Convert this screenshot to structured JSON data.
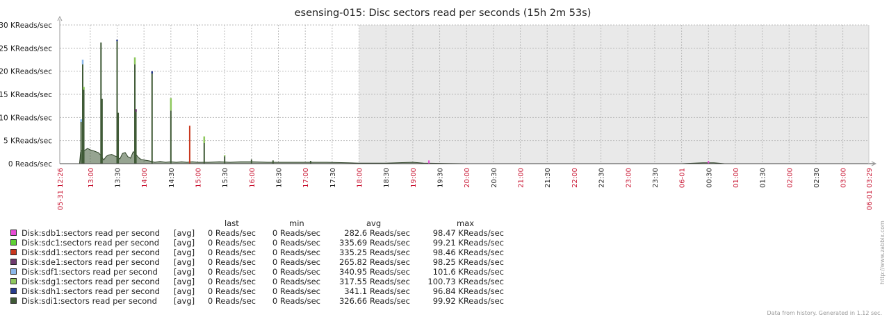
{
  "chart_data": {
    "type": "area",
    "title": "esensing-015: Disc sectors read per seconds (15h 2m 53s)",
    "xlabel": "",
    "ylabel": "",
    "ylim": [
      0,
      30
    ],
    "y_unit": "KReads/sec",
    "ytick_labels": [
      "0 Reads/sec",
      "5 KReads/sec",
      "10 KReads/sec",
      "15 KReads/sec",
      "20 KReads/sec",
      "25 KReads/sec",
      "30 KReads/sec"
    ],
    "x_range_hours": [
      12.4333,
      27.4833
    ],
    "x_start_label": "05-31 12:26",
    "x_end_label": "06-01 03:29",
    "x_ticks": [
      {
        "label": "13:00",
        "h": 13.0,
        "major": true
      },
      {
        "label": "13:30",
        "h": 13.5,
        "major": false
      },
      {
        "label": "14:00",
        "h": 14.0,
        "major": true
      },
      {
        "label": "14:30",
        "h": 14.5,
        "major": false
      },
      {
        "label": "15:00",
        "h": 15.0,
        "major": true
      },
      {
        "label": "15:30",
        "h": 15.5,
        "major": false
      },
      {
        "label": "16:00",
        "h": 16.0,
        "major": true
      },
      {
        "label": "16:30",
        "h": 16.5,
        "major": false
      },
      {
        "label": "17:00",
        "h": 17.0,
        "major": true
      },
      {
        "label": "17:30",
        "h": 17.5,
        "major": false
      },
      {
        "label": "18:00",
        "h": 18.0,
        "major": true
      },
      {
        "label": "18:30",
        "h": 18.5,
        "major": false
      },
      {
        "label": "19:00",
        "h": 19.0,
        "major": true
      },
      {
        "label": "19:30",
        "h": 19.5,
        "major": false
      },
      {
        "label": "20:00",
        "h": 20.0,
        "major": true
      },
      {
        "label": "20:30",
        "h": 20.5,
        "major": false
      },
      {
        "label": "21:00",
        "h": 21.0,
        "major": true
      },
      {
        "label": "21:30",
        "h": 21.5,
        "major": false
      },
      {
        "label": "22:00",
        "h": 22.0,
        "major": true
      },
      {
        "label": "22:30",
        "h": 22.5,
        "major": false
      },
      {
        "label": "23:00",
        "h": 23.0,
        "major": true
      },
      {
        "label": "23:30",
        "h": 23.5,
        "major": false
      },
      {
        "label": "06-01",
        "h": 24.0,
        "major": true
      },
      {
        "label": "00:30",
        "h": 24.5,
        "major": false
      },
      {
        "label": "01:00",
        "h": 25.0,
        "major": true
      },
      {
        "label": "01:30",
        "h": 25.5,
        "major": false
      },
      {
        "label": "02:00",
        "h": 26.0,
        "major": true
      },
      {
        "label": "02:30",
        "h": 26.5,
        "major": false
      },
      {
        "label": "03:00",
        "h": 27.0,
        "major": true
      }
    ],
    "no_data_after_h": 18.0,
    "baseline_points": [
      [
        12.8,
        0.0
      ],
      [
        12.82,
        2.5
      ],
      [
        12.86,
        3.0
      ],
      [
        12.9,
        2.9
      ],
      [
        12.95,
        3.3
      ],
      [
        13.0,
        3.0
      ],
      [
        13.08,
        2.7
      ],
      [
        13.15,
        2.4
      ],
      [
        13.2,
        1.8
      ],
      [
        13.25,
        0.8
      ],
      [
        13.3,
        1.6
      ],
      [
        13.35,
        1.9
      ],
      [
        13.4,
        2.0
      ],
      [
        13.45,
        1.7
      ],
      [
        13.5,
        1.5
      ],
      [
        13.55,
        1.0
      ],
      [
        13.6,
        2.2
      ],
      [
        13.65,
        2.4
      ],
      [
        13.7,
        1.5
      ],
      [
        13.75,
        1.2
      ],
      [
        13.8,
        2.6
      ],
      [
        13.85,
        2.0
      ],
      [
        13.9,
        1.3
      ],
      [
        13.95,
        0.9
      ],
      [
        14.0,
        0.8
      ],
      [
        14.1,
        0.6
      ],
      [
        14.2,
        0.3
      ],
      [
        14.3,
        0.5
      ],
      [
        14.4,
        0.3
      ],
      [
        14.5,
        0.4
      ],
      [
        14.6,
        0.3
      ],
      [
        14.7,
        0.4
      ],
      [
        14.8,
        0.3
      ],
      [
        14.9,
        0.4
      ],
      [
        15.0,
        0.3
      ],
      [
        15.2,
        0.3
      ],
      [
        15.4,
        0.4
      ],
      [
        15.6,
        0.3
      ],
      [
        15.8,
        0.4
      ],
      [
        16.0,
        0.4
      ],
      [
        16.3,
        0.3
      ],
      [
        16.6,
        0.3
      ],
      [
        17.0,
        0.3
      ],
      [
        17.4,
        0.3
      ],
      [
        17.8,
        0.2
      ],
      [
        18.0,
        0.1
      ],
      [
        18.5,
        0.1
      ],
      [
        19.0,
        0.3
      ],
      [
        19.2,
        0.1
      ],
      [
        20.0,
        0.0
      ],
      [
        24.0,
        0.0
      ],
      [
        24.4,
        0.2
      ],
      [
        24.6,
        0.2
      ],
      [
        24.8,
        0.0
      ],
      [
        27.48,
        0.0
      ]
    ],
    "spikes": [
      {
        "h": 12.83,
        "value": 9.0,
        "series": "Disk:sdi1:sectors read per second",
        "cap": "Disk:sdf1:sectors read per second"
      },
      {
        "h": 12.86,
        "value": 21.5,
        "series": "Disk:sdi1:sectors read per second",
        "cap": "Disk:sdf1:sectors read per second",
        "cap_value": 22.5
      },
      {
        "h": 12.88,
        "value": 16.0,
        "series": "Disk:sdi1:sectors read per second",
        "cap": "Disk:sdg1:sectors read per second"
      },
      {
        "h": 13.2,
        "value": 26.2,
        "series": "Disk:sdi1:sectors read per second"
      },
      {
        "h": 13.22,
        "value": 14.0,
        "series": "Disk:sdi1:sectors read per second"
      },
      {
        "h": 13.5,
        "value": 26.5,
        "series": "Disk:sdi1:sectors read per second",
        "cap": "Disk:sdh1:sectors read per second",
        "cap_value": 26.8
      },
      {
        "h": 13.52,
        "value": 11.0,
        "series": "Disk:sdi1:sectors read per second"
      },
      {
        "h": 13.83,
        "value": 21.5,
        "series": "Disk:sdi1:sectors read per second",
        "cap": "Disk:sdg1:sectors read per second",
        "cap_value": 23.0
      },
      {
        "h": 13.85,
        "value": 11.2,
        "series": "Disk:sdi1:sectors read per second",
        "cap": "Disk:sde1:sectors read per second"
      },
      {
        "h": 14.15,
        "value": 19.5,
        "series": "Disk:sdi1:sectors read per second",
        "cap": "Disk:sdh1:sectors read per second",
        "cap_value": 20.0
      },
      {
        "h": 14.5,
        "value": 11.5,
        "series": "Disk:sdi1:sectors read per second",
        "cap": "Disk:sdg1:sectors read per second",
        "cap_value": 14.2
      },
      {
        "h": 14.85,
        "value": 8.2,
        "series": "Disk:sdd1:sectors read per second"
      },
      {
        "h": 15.12,
        "value": 4.5,
        "series": "Disk:sdi1:sectors read per second",
        "cap": "Disk:sdg1:sectors read per second",
        "cap_value": 5.9
      },
      {
        "h": 15.5,
        "value": 1.6,
        "series": "Disk:sdi1:sectors read per second",
        "cap": "Disk:sdg1:sectors read per second",
        "cap_value": 1.8
      },
      {
        "h": 16.0,
        "value": 0.9,
        "series": "Disk:sdi1:sectors read per second"
      },
      {
        "h": 16.4,
        "value": 0.7,
        "series": "Disk:sdi1:sectors read per second"
      },
      {
        "h": 17.1,
        "value": 0.6,
        "series": "Disk:sdi1:sectors read per second"
      },
      {
        "h": 19.3,
        "value": 0.7,
        "series": "Disk:sdb1:sectors read per second"
      },
      {
        "h": 24.5,
        "value": 0.6,
        "series": "Disk:sdb1:sectors read per second"
      }
    ],
    "series": [
      {
        "name": "Disk:sdb1:sectors read per second",
        "color": "#e84cd6",
        "func": "[avg]",
        "last": "0 Reads/sec",
        "min": "0 Reads/sec",
        "avg": "282.6 Reads/sec",
        "max": "98.47 KReads/sec"
      },
      {
        "name": "Disk:sdc1:sectors read per second",
        "color": "#5ed134",
        "func": "[avg]",
        "last": "0 Reads/sec",
        "min": "0 Reads/sec",
        "avg": "335.69 Reads/sec",
        "max": "99.21 KReads/sec"
      },
      {
        "name": "Disk:sdd1:sectors read per second",
        "color": "#c8371d",
        "func": "[avg]",
        "last": "0 Reads/sec",
        "min": "0 Reads/sec",
        "avg": "335.25 Reads/sec",
        "max": "98.46 KReads/sec"
      },
      {
        "name": "Disk:sde1:sectors read per second",
        "color": "#6e3a6e",
        "func": "[avg]",
        "last": "0 Reads/sec",
        "min": "0 Reads/sec",
        "avg": "265.82 Reads/sec",
        "max": "98.25 KReads/sec"
      },
      {
        "name": "Disk:sdf1:sectors read per second",
        "color": "#8cb8ea",
        "func": "[avg]",
        "last": "0 Reads/sec",
        "min": "0 Reads/sec",
        "avg": "340.95 Reads/sec",
        "max": "101.6 KReads/sec"
      },
      {
        "name": "Disk:sdg1:sectors read per second",
        "color": "#8ec85e",
        "func": "[avg]",
        "last": "0 Reads/sec",
        "min": "0 Reads/sec",
        "avg": "317.55 Reads/sec",
        "max": "100.73 KReads/sec"
      },
      {
        "name": "Disk:sdh1:sectors read per second",
        "color": "#283c8c",
        "func": "[avg]",
        "last": "0 Reads/sec",
        "min": "0 Reads/sec",
        "avg": "341.1 Reads/sec",
        "max": "96.84 KReads/sec"
      },
      {
        "name": "Disk:sdi1:sectors read per second",
        "color": "#3f5a36",
        "func": "[avg]",
        "last": "0 Reads/sec",
        "min": "0 Reads/sec",
        "avg": "326.66 Reads/sec",
        "max": "99.92 KReads/sec"
      }
    ]
  },
  "legend": {
    "headers": {
      "last": "last",
      "min": "min",
      "avg": "avg",
      "max": "max"
    }
  },
  "footer": {
    "generated": "Data from history. Generated in 1.12 sec.",
    "link": "http://www.zabbix.com"
  }
}
